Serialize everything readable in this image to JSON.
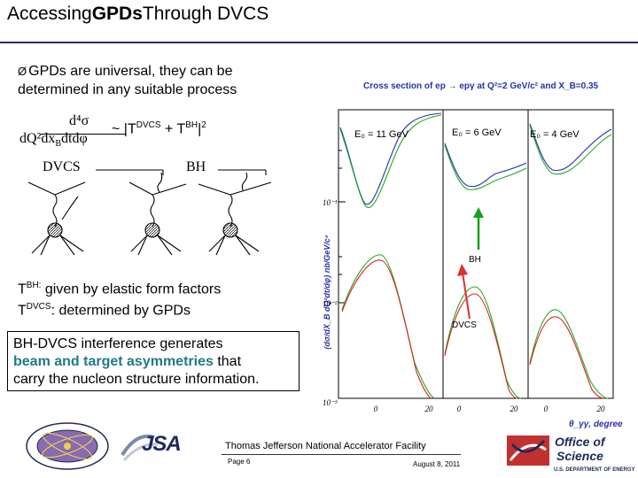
{
  "header": {
    "title_part1": "Accessing",
    "title_part2": "GPDs",
    "title_part3": "Through DVCS"
  },
  "bullet": {
    "arrow": "Ø",
    "text_line1": "GPDs are universal, they can be",
    "text_line2": "determined in any suitable process"
  },
  "formula": {
    "numerator": "d⁴σ",
    "denominator": "dQ²dx",
    "denominator_sub": "B",
    "denominator_tail": "dtdφ",
    "tilde": "~ |T",
    "sup1": "DVCS",
    "plus": " + T",
    "sup2": "BH",
    "tail": "|",
    "sup3": "2"
  },
  "feynman": {
    "dvcs_label": "DVCS",
    "bh_label": "BH"
  },
  "amplitudes": {
    "bh_T": "T",
    "bh_sup": "BH:",
    "bh_text": " given by elastic form factors",
    "dvcs_T": "T",
    "dvcs_sup": "DVCS",
    "dvcs_text": ": determined by GPDs"
  },
  "interference": {
    "line1": "BH-DVCS interference generates",
    "highlight": "beam and target asymmetries",
    "line2_tail": " that",
    "line3": "carry the nucleon structure information."
  },
  "plot": {
    "title": "Cross section of ep → epγ at Q²=2 GeV/c² and X_B=0.35",
    "ylabel": "(dσ/dX_B dQ²dt/dφ) nb/GeV/c⁴",
    "xlabel": "θ_γγ, degree",
    "panels": [
      {
        "energy": "E₀ = 11 GeV"
      },
      {
        "energy": "E₀ = 6 GeV"
      },
      {
        "energy": "E₀ = 4 GeV"
      }
    ],
    "ytick_labels": [
      "10⁻¹",
      "10⁻²",
      "10⁻³"
    ],
    "xtick_labels": [
      "0",
      "20",
      "0",
      "20",
      "0",
      "20"
    ],
    "annotation_bh": "BH",
    "annotation_dvcs": "DVCS",
    "colors": {
      "bh_arrow": "#1aa01a",
      "dvcs_arrow": "#d93030",
      "green_curve": "#22aa22",
      "red_curve": "#dd2222",
      "blue_curve": "#2233aa"
    }
  },
  "footer": {
    "lab": "Thomas Jefferson National Accelerator Facility",
    "page": "Page 6",
    "date": "August 8, 2011",
    "jsa_logo": "JSA",
    "doe_line1": "Office of",
    "doe_line2": "Science",
    "doe_line3": "U.S. DEPARTMENT OF ENERGY"
  }
}
